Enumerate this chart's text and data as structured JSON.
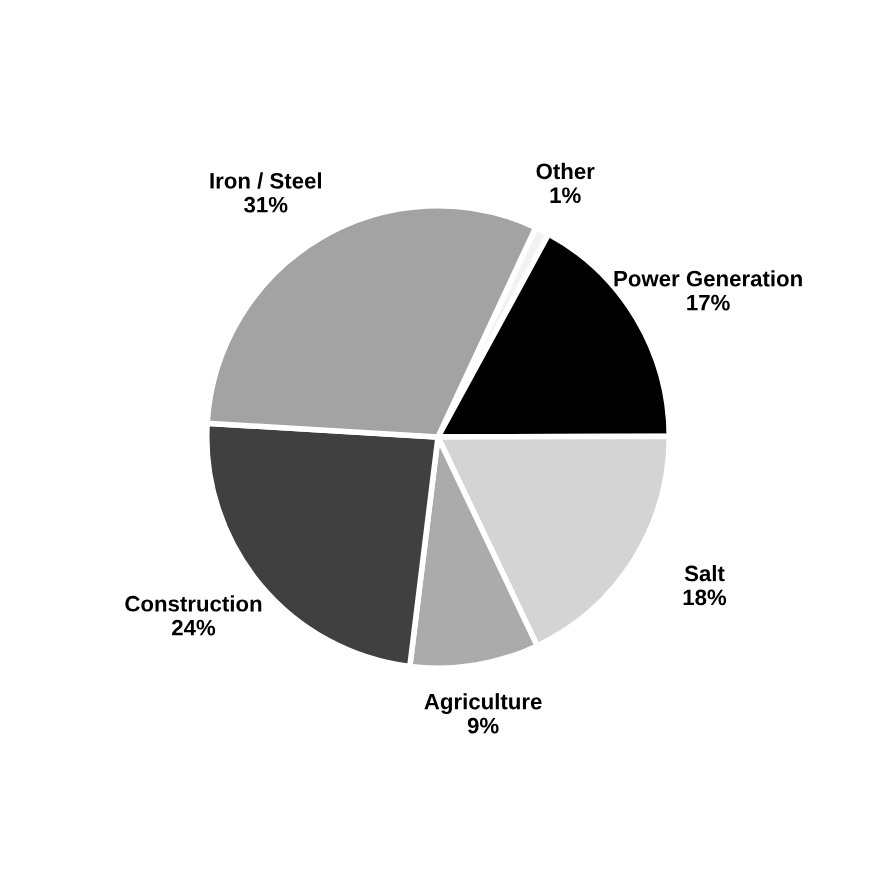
{
  "chart_data": {
    "type": "pie",
    "categories": [
      "Other",
      "Power Generation",
      "Salt",
      "Agriculture",
      "Construction",
      "Iron / Steel"
    ],
    "values": [
      1,
      17,
      18,
      9,
      24,
      31
    ],
    "colors": [
      "#f2f2f2",
      "#000000",
      "#d4d4d4",
      "#ababab",
      "#404040",
      "#a3a3a3"
    ],
    "value_labels": [
      "1%",
      "17%",
      "18%",
      "9%",
      "24%",
      "31%"
    ]
  }
}
